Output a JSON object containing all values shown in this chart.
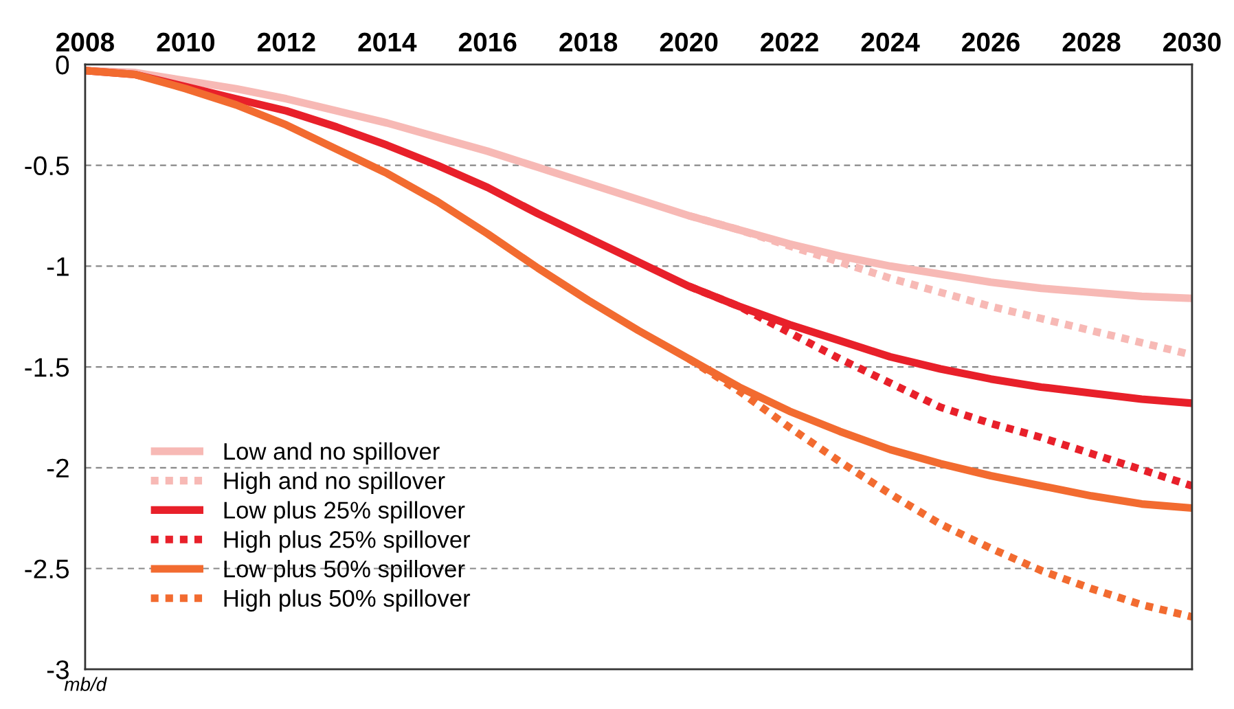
{
  "chart_data": {
    "type": "line",
    "x": [
      2008,
      2009,
      2010,
      2011,
      2012,
      2013,
      2014,
      2015,
      2016,
      2017,
      2018,
      2019,
      2020,
      2021,
      2022,
      2023,
      2024,
      2025,
      2026,
      2027,
      2028,
      2029,
      2030
    ],
    "series": [
      {
        "name": "Low and no spillover",
        "color": "#f7b9b5",
        "line_style": "solid",
        "values": [
          -0.03,
          -0.04,
          -0.08,
          -0.12,
          -0.17,
          -0.23,
          -0.29,
          -0.36,
          -0.43,
          -0.51,
          -0.59,
          -0.67,
          -0.75,
          -0.82,
          -0.89,
          -0.95,
          -1.0,
          -1.04,
          -1.08,
          -1.11,
          -1.13,
          -1.15,
          -1.16
        ]
      },
      {
        "name": "High and no spillover",
        "color": "#f7b9b5",
        "line_style": "dashed",
        "values": [
          null,
          null,
          null,
          null,
          null,
          null,
          null,
          null,
          null,
          null,
          null,
          null,
          -0.75,
          -0.82,
          -0.9,
          -0.98,
          -1.06,
          -1.13,
          -1.2,
          -1.26,
          -1.32,
          -1.38,
          -1.44
        ]
      },
      {
        "name": "Low plus 25% spillover",
        "color": "#e8202a",
        "line_style": "solid",
        "values": [
          -0.03,
          -0.05,
          -0.11,
          -0.17,
          -0.23,
          -0.31,
          -0.4,
          -0.5,
          -0.61,
          -0.74,
          -0.86,
          -0.98,
          -1.1,
          -1.2,
          -1.29,
          -1.37,
          -1.45,
          -1.51,
          -1.56,
          -1.6,
          -1.63,
          -1.66,
          -1.68
        ]
      },
      {
        "name": "High plus 25% spillover",
        "color": "#e8202a",
        "line_style": "dashed",
        "values": [
          null,
          null,
          null,
          null,
          null,
          null,
          null,
          null,
          null,
          null,
          null,
          null,
          -1.1,
          -1.2,
          -1.33,
          -1.46,
          -1.58,
          -1.7,
          -1.78,
          -1.85,
          -1.93,
          -2.01,
          -2.09
        ]
      },
      {
        "name": "Low plus 50% spillover",
        "color": "#f26b30",
        "line_style": "solid",
        "values": [
          -0.03,
          -0.05,
          -0.12,
          -0.2,
          -0.3,
          -0.42,
          -0.54,
          -0.68,
          -0.84,
          -1.01,
          -1.17,
          -1.32,
          -1.46,
          -1.6,
          -1.72,
          -1.82,
          -1.91,
          -1.98,
          -2.04,
          -2.09,
          -2.14,
          -2.18,
          -2.2
        ]
      },
      {
        "name": "High plus 50% spillover",
        "color": "#f26b30",
        "line_style": "dashed",
        "values": [
          null,
          null,
          null,
          null,
          null,
          null,
          null,
          null,
          null,
          null,
          null,
          null,
          -1.46,
          -1.62,
          -1.8,
          -1.97,
          -2.13,
          -2.28,
          -2.4,
          -2.51,
          -2.6,
          -2.68,
          -2.74
        ]
      }
    ],
    "xlim": [
      2008,
      2030
    ],
    "xticks": [
      2008,
      2010,
      2012,
      2014,
      2016,
      2018,
      2020,
      2022,
      2024,
      2026,
      2028,
      2030
    ],
    "ylim": [
      -3,
      0
    ],
    "yticks": [
      0,
      -0.5,
      -1,
      -1.5,
      -2,
      -2.5,
      -3
    ],
    "grid": "y",
    "legend": "bottom left",
    "marker": "none",
    "annotations": [
      "mb/d"
    ]
  }
}
